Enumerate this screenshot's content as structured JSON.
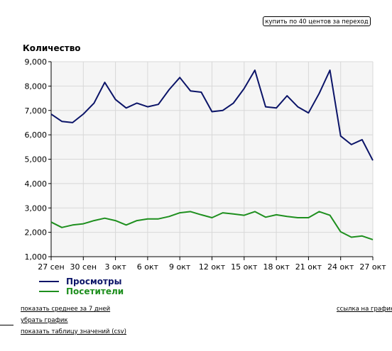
{
  "buy_button": "купить по 40 центов за переход",
  "links": {
    "avg7": "показать среднее за 7 дней",
    "link_chart": "ссылка на график",
    "remove": "убрать график",
    "table_prefix": "показать таблицу значений (",
    "csv": "csv",
    "table_suffix": ")"
  },
  "colors": {
    "views": "#0b1468",
    "visitors": "#1e8f1e",
    "plot_bg": "#f5f5f5"
  },
  "chart_data": {
    "type": "line",
    "ylabel": "Количество",
    "ylim": [
      1000,
      9000
    ],
    "yticks": [
      "1,000",
      "2,000",
      "3,000",
      "4,000",
      "5,000",
      "6,000",
      "7,000",
      "8,000",
      "9,000"
    ],
    "xticks": [
      "27 сен",
      "30 сен",
      "3 окт",
      "6 окт",
      "9 окт",
      "12 окт",
      "15 окт",
      "18 окт",
      "21 окт",
      "24 окт",
      "27 окт"
    ],
    "grid": true,
    "legend_position": "bottom-left",
    "series": [
      {
        "name": "Просмотры",
        "values": [
          6850,
          6550,
          6500,
          6850,
          7300,
          8150,
          7450,
          7100,
          7300,
          7150,
          7250,
          7850,
          8350,
          7800,
          7750,
          6950,
          7000,
          7300,
          7900,
          8650,
          7150,
          7100,
          7600,
          7150,
          6900,
          7700,
          8650,
          5950,
          5600,
          5800,
          4950
        ]
      },
      {
        "name": "Посетители",
        "values": [
          2420,
          2200,
          2300,
          2350,
          2480,
          2580,
          2480,
          2300,
          2480,
          2550,
          2550,
          2650,
          2800,
          2850,
          2720,
          2600,
          2800,
          2750,
          2700,
          2850,
          2620,
          2720,
          2650,
          2600,
          2600,
          2850,
          2700,
          2020,
          1800,
          1850,
          1700
        ]
      }
    ]
  }
}
